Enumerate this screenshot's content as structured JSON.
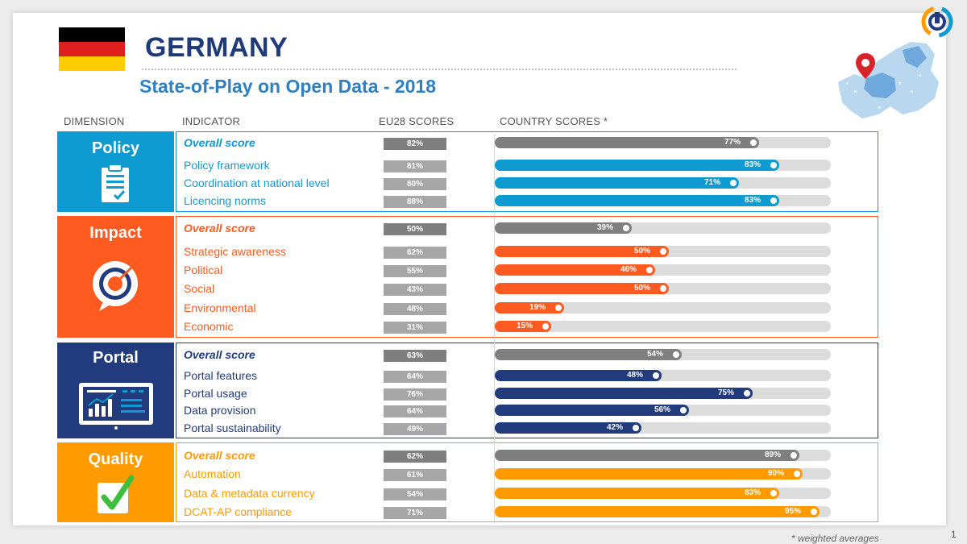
{
  "header": {
    "title": "GERMANY",
    "subtitle": "State-of-Play on Open Data - 2018"
  },
  "columns": {
    "dimension": "DIMENSION",
    "indicator": "INDICATOR",
    "eu28": "EU28 SCORES",
    "country": "COUNTRY SCORES *"
  },
  "icons": {
    "policy": "clipboard-check-icon",
    "impact": "target-arrow-icon",
    "portal": "monitor-chart-icon",
    "quality": "checkbox-tick-icon",
    "logo": "open-data-logo",
    "map": "europe-map-pin-icon"
  },
  "colors": {
    "policy": "#0e9bd2",
    "impact": "#ff5a1f",
    "portal": "#213b7d",
    "quality": "#ff9b00",
    "overall_bar": "#7f7f7f",
    "eu_overall": "#7f7f7f",
    "eu_indicator": "#a6a6a6"
  },
  "chart_data": {
    "type": "bar",
    "orientation": "horizontal",
    "xlim": [
      0,
      100
    ],
    "unit": "%",
    "dimensions": [
      {
        "key": "policy",
        "name": "Policy",
        "rows": [
          {
            "indicator": "Overall score",
            "overall": true,
            "eu28": 82,
            "country": 77
          },
          {
            "indicator": "Policy framework",
            "overall": false,
            "eu28": 81,
            "country": 83
          },
          {
            "indicator": "Coordination at national level",
            "overall": false,
            "eu28": 80,
            "country": 71
          },
          {
            "indicator": "Licencing norms",
            "overall": false,
            "eu28": 88,
            "country": 83
          }
        ]
      },
      {
        "key": "impact",
        "name": "Impact",
        "rows": [
          {
            "indicator": "Overall score",
            "overall": true,
            "eu28": 50,
            "country": 39
          },
          {
            "indicator": "Strategic awareness",
            "overall": false,
            "eu28": 62,
            "country": 50
          },
          {
            "indicator": "Political",
            "overall": false,
            "eu28": 55,
            "country": 46
          },
          {
            "indicator": "Social",
            "overall": false,
            "eu28": 43,
            "country": 50
          },
          {
            "indicator": "Environmental",
            "overall": false,
            "eu28": 48,
            "country": 19
          },
          {
            "indicator": "Economic",
            "overall": false,
            "eu28": 31,
            "country": 15
          }
        ]
      },
      {
        "key": "portal",
        "name": "Portal",
        "rows": [
          {
            "indicator": "Overall score",
            "overall": true,
            "eu28": 63,
            "country": 54
          },
          {
            "indicator": "Portal features",
            "overall": false,
            "eu28": 64,
            "country": 48
          },
          {
            "indicator": "Portal usage",
            "overall": false,
            "eu28": 76,
            "country": 75
          },
          {
            "indicator": "Data provision",
            "overall": false,
            "eu28": 64,
            "country": 56
          },
          {
            "indicator": "Portal sustainability",
            "overall": false,
            "eu28": 49,
            "country": 42
          }
        ]
      },
      {
        "key": "quality",
        "name": "Quality",
        "rows": [
          {
            "indicator": "Overall score",
            "overall": true,
            "eu28": 62,
            "country": 89
          },
          {
            "indicator": "Automation",
            "overall": false,
            "eu28": 61,
            "country": 90
          },
          {
            "indicator": "Data & metadata currency",
            "overall": false,
            "eu28": 54,
            "country": 83
          },
          {
            "indicator": "DCAT-AP compliance",
            "overall": false,
            "eu28": 71,
            "country": 95
          }
        ]
      }
    ]
  },
  "footnote": "* weighted averages",
  "page_number": "1"
}
